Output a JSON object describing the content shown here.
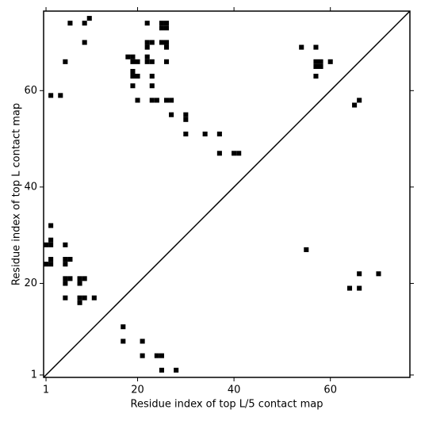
{
  "chart_data": {
    "type": "scatter",
    "xlabel": "Residue index of top L/5 contact map",
    "ylabel": "Residue index of top L contact map",
    "color": "#000000",
    "xlim": [
      0.5,
      76.5
    ],
    "ylim": [
      0.5,
      76.5
    ],
    "xticks": [
      1,
      20,
      40,
      60
    ],
    "yticks": [
      1,
      20,
      40,
      60
    ],
    "x": [
      6,
      9,
      10,
      9,
      5,
      2,
      4,
      18,
      19,
      20,
      19,
      19,
      19,
      20,
      19,
      20,
      22,
      25,
      26,
      25,
      26,
      22,
      23,
      22,
      22,
      22,
      23,
      23,
      23,
      25,
      26,
      26,
      26,
      23,
      24,
      26,
      27,
      27,
      30,
      30,
      30,
      34,
      37,
      37,
      40,
      41,
      54,
      57,
      57,
      58,
      57,
      58,
      57,
      60,
      65,
      66,
      2,
      2,
      1,
      2,
      5,
      2,
      2,
      1,
      5,
      6,
      5,
      5,
      6,
      5,
      8,
      9,
      8,
      5,
      8,
      9,
      8,
      11,
      17,
      17,
      21,
      21,
      24,
      25,
      25,
      28,
      55,
      64,
      66,
      66,
      70
    ],
    "values": [
      74,
      74,
      75,
      70,
      66,
      59,
      59,
      67,
      67,
      66,
      66,
      64,
      63,
      63,
      61,
      58,
      74,
      73,
      73,
      74,
      74,
      70,
      70,
      69,
      67,
      66,
      66,
      63,
      61,
      70,
      70,
      69,
      66,
      58,
      58,
      58,
      58,
      55,
      55,
      54,
      51,
      51,
      51,
      47,
      47,
      47,
      69,
      69,
      65,
      65,
      66,
      66,
      63,
      66,
      57,
      58,
      32,
      29,
      28,
      28,
      28,
      25,
      24,
      24,
      25,
      25,
      24,
      21,
      21,
      20,
      21,
      21,
      20,
      17,
      17,
      17,
      16,
      17,
      11,
      8,
      8,
      5,
      5,
      5,
      2,
      2,
      27,
      19,
      19,
      22,
      22
    ]
  }
}
